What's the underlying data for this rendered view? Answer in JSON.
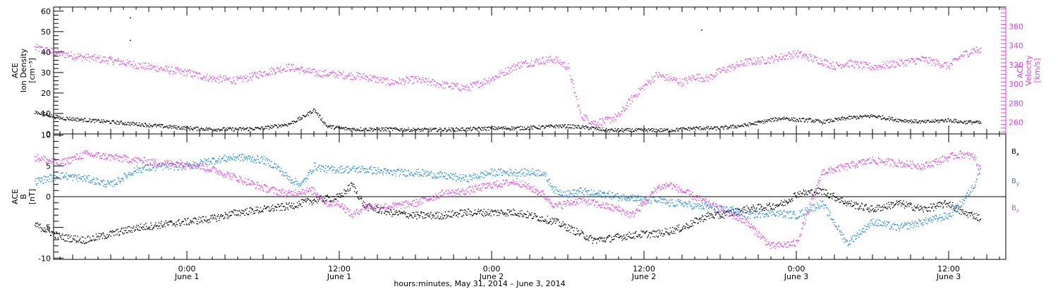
{
  "chart_data": [
    {
      "type": "scatter",
      "panel": "top",
      "left_axis": {
        "label_lines": [
          "ACE",
          "Ion Density",
          "[cm⁻³]"
        ],
        "ylim": [
          0,
          62
        ],
        "ticks": [
          0,
          10,
          20,
          30,
          40,
          50,
          60
        ]
      },
      "right_axis": {
        "label_lines": [
          "ACE",
          "Velocity",
          "[km/s]"
        ],
        "ylim": [
          248,
          380
        ],
        "ticks": [
          260,
          280,
          300,
          320,
          340,
          360
        ],
        "color": "#e040e0"
      },
      "series": [
        {
          "axis": "left",
          "color": "#000000",
          "x": [
            -12,
            -10,
            -8,
            -6,
            -4,
            -2,
            0,
            2,
            4,
            6,
            8,
            9,
            10,
            11,
            12,
            13,
            14,
            16,
            18,
            20,
            22,
            24,
            26,
            28,
            29,
            30,
            31,
            32,
            33,
            34,
            36,
            38,
            40,
            42,
            44,
            46,
            47,
            48,
            49,
            50,
            52,
            54,
            56,
            58,
            60,
            61,
            62,
            62.5
          ],
          "y": [
            11,
            8,
            7,
            6,
            5,
            4,
            3,
            2.5,
            2.5,
            3,
            5,
            8,
            12,
            4,
            3,
            2.5,
            2.5,
            2.5,
            2.2,
            2.3,
            2.5,
            3,
            3,
            3.5,
            4,
            4,
            3.5,
            3,
            2,
            2,
            2,
            2,
            3,
            3,
            4.5,
            7,
            8,
            7,
            7,
            6,
            8,
            9,
            7,
            6,
            7,
            6,
            6,
            5.5
          ]
        },
        {
          "axis": "right",
          "color": "#e040e0",
          "x": [
            -12,
            -10,
            -8,
            -6,
            -4,
            -2,
            0,
            2,
            4,
            6,
            8,
            10,
            12,
            14,
            16,
            18,
            20,
            22,
            24,
            26,
            28,
            29,
            30,
            31,
            32,
            33,
            34,
            35,
            36,
            37,
            38,
            39,
            40,
            41,
            42,
            43,
            44,
            46,
            48,
            49,
            50,
            51,
            52,
            53,
            54,
            56,
            58,
            60,
            61,
            62,
            62.5
          ],
          "y": [
            338,
            332,
            328,
            325,
            320,
            316,
            312,
            306,
            304,
            312,
            318,
            312,
            310,
            308,
            302,
            305,
            300,
            296,
            306,
            320,
            325,
            326,
            318,
            268,
            260,
            262,
            267,
            285,
            298,
            310,
            306,
            302,
            308,
            306,
            314,
            318,
            323,
            326,
            332,
            328,
            324,
            319,
            322,
            320,
            318,
            322,
            326,
            319,
            330,
            336,
            334
          ]
        }
      ]
    },
    {
      "type": "scatter",
      "panel": "bottom",
      "left_axis": {
        "label_lines": [
          "ACE",
          "B",
          "[nT]"
        ],
        "ylim": [
          -10.2,
          10.2
        ],
        "ticks": [
          -10,
          -5,
          0,
          5,
          10
        ]
      },
      "series": [
        {
          "name_parts": [
            "B",
            "x"
          ],
          "color": "#000000",
          "x": [
            -12,
            -10,
            -8,
            -6,
            -4,
            -2,
            0,
            2,
            4,
            6,
            8,
            9,
            10,
            12,
            13,
            14,
            16,
            18,
            20,
            22,
            24,
            26,
            28,
            29,
            30,
            31,
            32,
            33,
            34,
            35,
            36,
            37,
            38,
            39,
            40,
            41,
            42,
            43,
            44,
            46,
            47,
            48,
            50,
            52,
            54,
            56,
            58,
            60,
            61,
            62,
            62.5
          ],
          "y": [
            -4.5,
            -6.5,
            -7,
            -6,
            -5,
            -4.5,
            -4,
            -3.5,
            -2.5,
            -2,
            -1.5,
            -1,
            -0.5,
            0,
            2,
            -1.5,
            -2.5,
            -3,
            -3,
            -2.5,
            -2.5,
            -2.5,
            -3.5,
            -4,
            -5,
            -6,
            -7,
            -6.8,
            -6.5,
            -6.2,
            -6,
            -6,
            -5.5,
            -5,
            -4,
            -3,
            -3,
            -2.5,
            -2,
            -1.5,
            -1,
            0.5,
            1,
            -1,
            -2,
            -1,
            -2,
            -1,
            -2.5,
            -3,
            -3.5
          ]
        },
        {
          "name_parts": [
            "B",
            "y"
          ],
          "color": "#1e8be0",
          "x": [
            -12,
            -10,
            -8,
            -6,
            -4,
            -2,
            0,
            2,
            4,
            6,
            7,
            8,
            9,
            10,
            11,
            12,
            13,
            14,
            16,
            18,
            20,
            22,
            24,
            26,
            28,
            29,
            30,
            31,
            32,
            33,
            34,
            35,
            36,
            37,
            38,
            39,
            40,
            41,
            42,
            43,
            44,
            46,
            48,
            50,
            52,
            54,
            56,
            58,
            60,
            61,
            62,
            62.5
          ],
          "y": [
            2.5,
            3.5,
            3,
            2,
            4.5,
            5,
            5,
            6,
            6.5,
            6,
            5,
            3,
            2,
            5,
            4.5,
            4.5,
            4.5,
            4.5,
            4,
            4,
            3.5,
            3,
            4,
            4,
            4,
            1,
            0.5,
            1,
            0.5,
            0.5,
            0,
            0,
            -0.5,
            -0.5,
            -1,
            -1,
            -1.5,
            -1.5,
            -2,
            -2,
            -3,
            -2.5,
            -3,
            -1,
            -7.5,
            -4,
            -5,
            -4,
            -3,
            -1,
            2,
            5
          ]
        },
        {
          "name_parts": [
            "B",
            "z"
          ],
          "color": "#e040e0",
          "x": [
            -12,
            -10,
            -8,
            -6,
            -4,
            -2,
            0,
            2,
            4,
            6,
            7,
            8,
            9,
            10,
            11,
            12,
            13,
            14,
            16,
            18,
            20,
            22,
            24,
            26,
            28,
            29,
            30,
            31,
            32,
            33,
            34,
            35,
            36,
            37,
            38,
            39,
            40,
            41,
            42,
            43,
            44,
            45,
            46,
            48,
            50,
            52,
            54,
            56,
            58,
            60,
            61,
            62,
            62.5
          ],
          "y": [
            6.5,
            5.5,
            7,
            6.5,
            6,
            5.5,
            5.5,
            4.5,
            3,
            1.5,
            1,
            0.5,
            1,
            1,
            -1,
            -1,
            -3,
            -1.5,
            -1.5,
            -1,
            0.5,
            1,
            2,
            2.5,
            0.5,
            -1.5,
            -1,
            -0.5,
            -1,
            -1.5,
            -2,
            -3,
            -1,
            1.5,
            2,
            1,
            0,
            -1,
            -2,
            -3,
            -4,
            -6,
            -8,
            -7.5,
            4,
            5,
            6,
            5.5,
            5,
            6.5,
            7,
            6.5,
            4
          ]
        }
      ],
      "reference_line_y": 0
    }
  ],
  "x_axis": {
    "tick_labels": [
      {
        "x": 0,
        "line1": "0:00",
        "line2": "June 1"
      },
      {
        "x": 12,
        "line1": "12:00",
        "line2": "June 1"
      },
      {
        "x": 24,
        "line1": "0:00",
        "line2": "June 2"
      },
      {
        "x": 36,
        "line1": "12:00",
        "line2": "June 2"
      },
      {
        "x": 48,
        "line1": "0:00",
        "line2": "June 3"
      },
      {
        "x": 60,
        "line1": "12:00",
        "line2": "June 3"
      }
    ],
    "title": "hours:minutes, May 31, 2014 – June  3, 2014",
    "xlim_hours_from_june1": [
      -10.5,
      64.5
    ]
  },
  "stray_points": [
    {
      "x": -4.5,
      "y": 57
    },
    {
      "x": -4.5,
      "y": 46
    },
    {
      "x": 40.5,
      "y": 51
    }
  ]
}
